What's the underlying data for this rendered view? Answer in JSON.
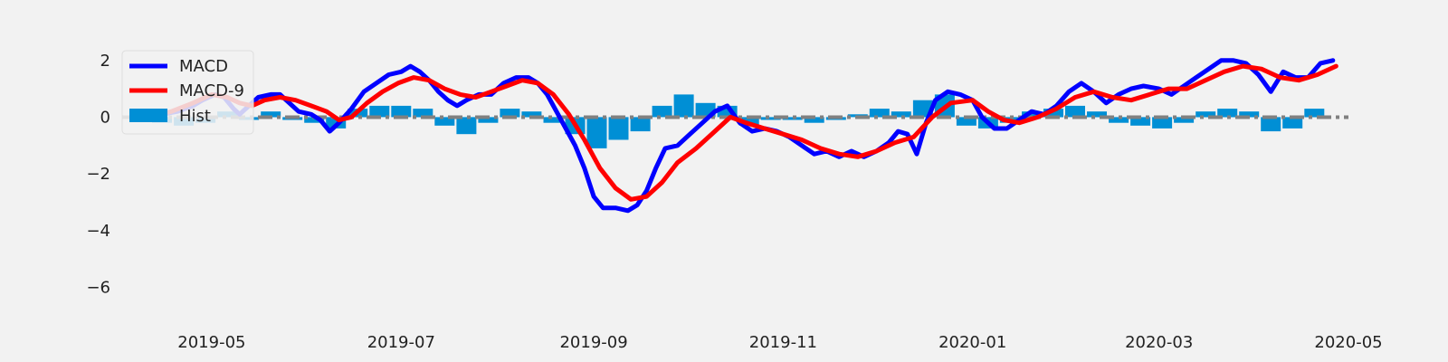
{
  "chart_data": {
    "type": "line",
    "title": "",
    "xlabel": "",
    "ylabel": "",
    "xlim": [
      "2019-04-08",
      "2020-05-01"
    ],
    "ylim": [
      -7.2,
      2.6
    ],
    "grid": false,
    "legend_position": "top-left",
    "x_ticks": [
      {
        "date": "2019-05-01",
        "label": "2019-05"
      },
      {
        "date": "2019-07-01",
        "label": "2019-07"
      },
      {
        "date": "2019-09-01",
        "label": "2019-09"
      },
      {
        "date": "2019-11-01",
        "label": "2019-11"
      },
      {
        "date": "2020-01-01",
        "label": "2020-01"
      },
      {
        "date": "2020-03-01",
        "label": "2020-03"
      },
      {
        "date": "2020-05-01",
        "label": "2020-05"
      }
    ],
    "y_ticks": [
      {
        "value": 2,
        "label": "2"
      },
      {
        "value": 0,
        "label": "0"
      },
      {
        "value": -2,
        "label": "−2"
      },
      {
        "value": -4,
        "label": "−4"
      },
      {
        "value": -6,
        "label": "−6"
      }
    ],
    "zero_line": {
      "y": 0,
      "style": "dash-dot",
      "color": "#808080"
    },
    "series": [
      {
        "name": "MACD",
        "kind": "line",
        "color": "#0000ff",
        "points": [
          [
            "2019-04-10",
            0.0
          ],
          [
            "2019-04-15",
            0.1
          ],
          [
            "2019-04-20",
            0.2
          ],
          [
            "2019-04-25",
            0.4
          ],
          [
            "2019-04-28",
            0.6
          ],
          [
            "2019-05-02",
            0.8
          ],
          [
            "2019-05-05",
            0.7
          ],
          [
            "2019-05-08",
            0.3
          ],
          [
            "2019-05-10",
            0.1
          ],
          [
            "2019-05-13",
            0.4
          ],
          [
            "2019-05-16",
            0.7
          ],
          [
            "2019-05-20",
            0.8
          ],
          [
            "2019-05-23",
            0.8
          ],
          [
            "2019-05-26",
            0.5
          ],
          [
            "2019-05-29",
            0.2
          ],
          [
            "2019-06-02",
            0.1
          ],
          [
            "2019-06-05",
            -0.1
          ],
          [
            "2019-06-08",
            -0.5
          ],
          [
            "2019-06-11",
            -0.2
          ],
          [
            "2019-06-15",
            0.3
          ],
          [
            "2019-06-19",
            0.9
          ],
          [
            "2019-06-23",
            1.2
          ],
          [
            "2019-06-27",
            1.5
          ],
          [
            "2019-07-01",
            1.6
          ],
          [
            "2019-07-04",
            1.8
          ],
          [
            "2019-07-07",
            1.6
          ],
          [
            "2019-07-10",
            1.3
          ],
          [
            "2019-07-13",
            0.9
          ],
          [
            "2019-07-16",
            0.6
          ],
          [
            "2019-07-19",
            0.4
          ],
          [
            "2019-07-22",
            0.6
          ],
          [
            "2019-07-26",
            0.8
          ],
          [
            "2019-07-30",
            0.8
          ],
          [
            "2019-08-03",
            1.2
          ],
          [
            "2019-08-07",
            1.4
          ],
          [
            "2019-08-11",
            1.4
          ],
          [
            "2019-08-14",
            1.2
          ],
          [
            "2019-08-17",
            0.8
          ],
          [
            "2019-08-20",
            0.2
          ],
          [
            "2019-08-23",
            -0.4
          ],
          [
            "2019-08-26",
            -1.0
          ],
          [
            "2019-08-29",
            -1.8
          ],
          [
            "2019-09-01",
            -2.8
          ],
          [
            "2019-09-04",
            -3.2
          ],
          [
            "2019-09-08",
            -3.2
          ],
          [
            "2019-09-12",
            -3.3
          ],
          [
            "2019-09-15",
            -3.1
          ],
          [
            "2019-09-18",
            -2.6
          ],
          [
            "2019-09-21",
            -1.8
          ],
          [
            "2019-09-24",
            -1.1
          ],
          [
            "2019-09-28",
            -1.0
          ],
          [
            "2019-10-02",
            -0.6
          ],
          [
            "2019-10-06",
            -0.2
          ],
          [
            "2019-10-10",
            0.2
          ],
          [
            "2019-10-14",
            0.4
          ],
          [
            "2019-10-18",
            -0.2
          ],
          [
            "2019-10-22",
            -0.5
          ],
          [
            "2019-10-26",
            -0.4
          ],
          [
            "2019-10-30",
            -0.5
          ],
          [
            "2019-11-03",
            -0.7
          ],
          [
            "2019-11-07",
            -1.0
          ],
          [
            "2019-11-11",
            -1.3
          ],
          [
            "2019-11-15",
            -1.2
          ],
          [
            "2019-11-19",
            -1.4
          ],
          [
            "2019-11-23",
            -1.2
          ],
          [
            "2019-11-27",
            -1.4
          ],
          [
            "2019-12-01",
            -1.2
          ],
          [
            "2019-12-05",
            -0.9
          ],
          [
            "2019-12-08",
            -0.5
          ],
          [
            "2019-12-11",
            -0.6
          ],
          [
            "2019-12-14",
            -1.3
          ],
          [
            "2019-12-17",
            -0.2
          ],
          [
            "2019-12-20",
            0.6
          ],
          [
            "2019-12-24",
            0.9
          ],
          [
            "2019-12-28",
            0.8
          ],
          [
            "2020-01-01",
            0.6
          ],
          [
            "2020-01-04",
            0.0
          ],
          [
            "2020-01-08",
            -0.4
          ],
          [
            "2020-01-12",
            -0.4
          ],
          [
            "2020-01-16",
            -0.1
          ],
          [
            "2020-01-20",
            0.2
          ],
          [
            "2020-01-24",
            0.1
          ],
          [
            "2020-01-28",
            0.4
          ],
          [
            "2020-02-01",
            0.9
          ],
          [
            "2020-02-05",
            1.2
          ],
          [
            "2020-02-09",
            0.9
          ],
          [
            "2020-02-13",
            0.5
          ],
          [
            "2020-02-17",
            0.8
          ],
          [
            "2020-02-21",
            1.0
          ],
          [
            "2020-02-25",
            1.1
          ],
          [
            "2020-03-01",
            1.0
          ],
          [
            "2020-03-05",
            0.8
          ],
          [
            "2020-03-09",
            1.1
          ],
          [
            "2020-03-13",
            1.4
          ],
          [
            "2020-03-17",
            1.7
          ],
          [
            "2020-03-21",
            2.0
          ],
          [
            "2020-03-25",
            2.0
          ],
          [
            "2020-03-29",
            1.9
          ],
          [
            "2020-04-02",
            1.5
          ],
          [
            "2020-04-06",
            0.9
          ],
          [
            "2020-04-10",
            1.6
          ],
          [
            "2020-04-14",
            1.4
          ],
          [
            "2020-04-18",
            1.4
          ],
          [
            "2020-04-22",
            1.9
          ],
          [
            "2020-04-26",
            2.0
          ]
        ]
      },
      {
        "name": "MACD-9",
        "kind": "line",
        "color": "#ff0000",
        "points": [
          [
            "2019-04-10",
            0.0
          ],
          [
            "2019-04-18",
            0.2
          ],
          [
            "2019-04-25",
            0.5
          ],
          [
            "2019-05-01",
            0.8
          ],
          [
            "2019-05-06",
            0.7
          ],
          [
            "2019-05-10",
            0.5
          ],
          [
            "2019-05-14",
            0.4
          ],
          [
            "2019-05-18",
            0.6
          ],
          [
            "2019-05-23",
            0.7
          ],
          [
            "2019-05-28",
            0.6
          ],
          [
            "2019-06-02",
            0.4
          ],
          [
            "2019-06-07",
            0.2
          ],
          [
            "2019-06-11",
            -0.1
          ],
          [
            "2019-06-15",
            0.0
          ],
          [
            "2019-06-20",
            0.5
          ],
          [
            "2019-06-25",
            0.9
          ],
          [
            "2019-06-30",
            1.2
          ],
          [
            "2019-07-05",
            1.4
          ],
          [
            "2019-07-10",
            1.3
          ],
          [
            "2019-07-15",
            1.0
          ],
          [
            "2019-07-20",
            0.8
          ],
          [
            "2019-07-25",
            0.7
          ],
          [
            "2019-07-30",
            0.9
          ],
          [
            "2019-08-04",
            1.1
          ],
          [
            "2019-08-09",
            1.3
          ],
          [
            "2019-08-14",
            1.2
          ],
          [
            "2019-08-19",
            0.8
          ],
          [
            "2019-08-24",
            0.1
          ],
          [
            "2019-08-29",
            -0.8
          ],
          [
            "2019-09-03",
            -1.8
          ],
          [
            "2019-09-08",
            -2.5
          ],
          [
            "2019-09-13",
            -2.9
          ],
          [
            "2019-09-18",
            -2.8
          ],
          [
            "2019-09-23",
            -2.3
          ],
          [
            "2019-09-28",
            -1.6
          ],
          [
            "2019-10-04",
            -1.1
          ],
          [
            "2019-10-10",
            -0.5
          ],
          [
            "2019-10-15",
            0.0
          ],
          [
            "2019-10-20",
            -0.2
          ],
          [
            "2019-10-26",
            -0.4
          ],
          [
            "2019-11-01",
            -0.6
          ],
          [
            "2019-11-07",
            -0.8
          ],
          [
            "2019-11-13",
            -1.1
          ],
          [
            "2019-11-19",
            -1.3
          ],
          [
            "2019-11-25",
            -1.4
          ],
          [
            "2019-12-01",
            -1.2
          ],
          [
            "2019-12-07",
            -0.9
          ],
          [
            "2019-12-13",
            -0.7
          ],
          [
            "2019-12-19",
            0.0
          ],
          [
            "2019-12-25",
            0.5
          ],
          [
            "2020-01-01",
            0.6
          ],
          [
            "2020-01-06",
            0.2
          ],
          [
            "2020-01-11",
            -0.1
          ],
          [
            "2020-01-16",
            -0.2
          ],
          [
            "2020-01-22",
            0.0
          ],
          [
            "2020-01-28",
            0.3
          ],
          [
            "2020-02-03",
            0.7
          ],
          [
            "2020-02-09",
            0.9
          ],
          [
            "2020-02-15",
            0.7
          ],
          [
            "2020-02-21",
            0.6
          ],
          [
            "2020-02-27",
            0.8
          ],
          [
            "2020-03-04",
            1.0
          ],
          [
            "2020-03-10",
            1.0
          ],
          [
            "2020-03-16",
            1.3
          ],
          [
            "2020-03-22",
            1.6
          ],
          [
            "2020-03-28",
            1.8
          ],
          [
            "2020-04-03",
            1.7
          ],
          [
            "2020-04-09",
            1.4
          ],
          [
            "2020-04-15",
            1.3
          ],
          [
            "2020-04-21",
            1.5
          ],
          [
            "2020-04-27",
            1.8
          ]
        ]
      },
      {
        "name": "Hist",
        "kind": "bar",
        "color": "#008fd5",
        "points": [
          [
            "2019-04-15",
            -0.2
          ],
          [
            "2019-04-22",
            -0.3
          ],
          [
            "2019-04-29",
            -0.2
          ],
          [
            "2019-05-06",
            0.2
          ],
          [
            "2019-05-13",
            -0.1
          ],
          [
            "2019-05-20",
            0.2
          ],
          [
            "2019-05-27",
            -0.1
          ],
          [
            "2019-06-03",
            -0.2
          ],
          [
            "2019-06-10",
            -0.4
          ],
          [
            "2019-06-17",
            0.3
          ],
          [
            "2019-06-24",
            0.4
          ],
          [
            "2019-07-01",
            0.4
          ],
          [
            "2019-07-08",
            0.3
          ],
          [
            "2019-07-15",
            -0.3
          ],
          [
            "2019-07-22",
            -0.6
          ],
          [
            "2019-07-29",
            -0.2
          ],
          [
            "2019-08-05",
            0.3
          ],
          [
            "2019-08-12",
            0.2
          ],
          [
            "2019-08-19",
            -0.2
          ],
          [
            "2019-08-26",
            -0.6
          ],
          [
            "2019-09-02",
            -1.1
          ],
          [
            "2019-09-09",
            -0.8
          ],
          [
            "2019-09-16",
            -0.5
          ],
          [
            "2019-09-23",
            0.4
          ],
          [
            "2019-09-30",
            0.8
          ],
          [
            "2019-10-07",
            0.5
          ],
          [
            "2019-10-14",
            0.4
          ],
          [
            "2019-10-21",
            -0.3
          ],
          [
            "2019-10-28",
            -0.1
          ],
          [
            "2019-11-04",
            -0.1
          ],
          [
            "2019-11-11",
            -0.2
          ],
          [
            "2019-11-18",
            -0.1
          ],
          [
            "2019-11-25",
            0.1
          ],
          [
            "2019-12-02",
            0.3
          ],
          [
            "2019-12-09",
            0.2
          ],
          [
            "2019-12-16",
            0.6
          ],
          [
            "2019-12-23",
            0.8
          ],
          [
            "2019-12-30",
            -0.3
          ],
          [
            "2020-01-06",
            -0.4
          ],
          [
            "2020-01-13",
            -0.2
          ],
          [
            "2020-01-20",
            0.2
          ],
          [
            "2020-01-27",
            0.3
          ],
          [
            "2020-02-03",
            0.4
          ],
          [
            "2020-02-10",
            0.2
          ],
          [
            "2020-02-17",
            -0.2
          ],
          [
            "2020-02-24",
            -0.3
          ],
          [
            "2020-03-02",
            -0.4
          ],
          [
            "2020-03-09",
            -0.2
          ],
          [
            "2020-03-16",
            0.2
          ],
          [
            "2020-03-23",
            0.3
          ],
          [
            "2020-03-30",
            0.2
          ],
          [
            "2020-04-06",
            -0.5
          ],
          [
            "2020-04-13",
            -0.4
          ],
          [
            "2020-04-20",
            0.3
          ]
        ]
      }
    ]
  }
}
